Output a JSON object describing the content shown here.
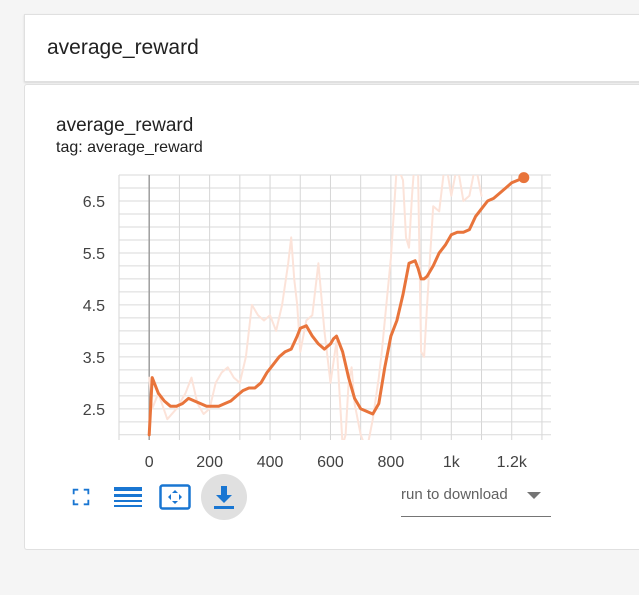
{
  "section": {
    "title": "average_reward"
  },
  "card": {
    "title": "average_reward",
    "tag": "tag: average_reward"
  },
  "toolbar": {
    "fullscreen_icon": "fullscreen-icon",
    "data_icon": "lines-icon",
    "fit_icon": "fit-domain-icon",
    "download_icon": "download-icon",
    "download_label": "run to download",
    "accent_color": "#1976d2"
  },
  "chart_data": {
    "type": "line",
    "title": "",
    "xlabel": "",
    "ylabel": "",
    "xlim": [
      -100,
      1330
    ],
    "ylim": [
      1.9,
      7.0
    ],
    "x_ticks": [
      0,
      200,
      400,
      600,
      800,
      1000,
      1200
    ],
    "x_tick_labels": [
      "0",
      "200",
      "400",
      "600",
      "800",
      "1k",
      "1.2k"
    ],
    "y_ticks": [
      2.5,
      3.5,
      4.5,
      5.5,
      6.5
    ],
    "y_tick_labels": [
      "2.5",
      "3.5",
      "4.5",
      "5.5",
      "6.5"
    ],
    "grid": true,
    "series": [
      {
        "role": "raw",
        "color": "#fce3d9",
        "x": [
          0,
          10,
          30,
          60,
          90,
          100,
          120,
          140,
          160,
          180,
          200,
          220,
          240,
          260,
          280,
          300,
          320,
          340,
          360,
          380,
          400,
          420,
          440,
          460,
          470,
          480,
          490,
          500,
          520,
          540,
          560,
          580,
          600,
          620,
          640,
          650,
          660,
          670,
          680,
          700,
          720,
          740,
          760,
          770,
          780,
          800,
          820,
          840,
          850,
          860,
          870,
          880,
          890,
          900,
          910,
          920,
          940,
          960,
          980,
          1000,
          1020,
          1040,
          1060,
          1080,
          1100
        ],
        "y": [
          3.1,
          2.5,
          2.8,
          2.3,
          2.5,
          2.6,
          2.8,
          3.1,
          2.6,
          2.4,
          2.5,
          3.0,
          3.2,
          3.3,
          3.1,
          3.0,
          3.5,
          4.5,
          4.3,
          4.2,
          4.3,
          4.0,
          4.5,
          5.3,
          5.8,
          5.0,
          4.5,
          3.6,
          4.2,
          4.3,
          5.3,
          4.0,
          3.0,
          3.8,
          1.8,
          2.0,
          3.0,
          3.3,
          2.6,
          2.0,
          1.7,
          2.3,
          3.1,
          3.6,
          4.2,
          5.4,
          7.2,
          6.9,
          5.8,
          5.6,
          6.6,
          7.4,
          7.0,
          3.6,
          3.5,
          4.5,
          6.4,
          6.3,
          7.3,
          6.6,
          7.2,
          6.5,
          6.6,
          7.2,
          6.6
        ]
      },
      {
        "role": "smoothed",
        "color": "#e8743b",
        "x": [
          0,
          10,
          30,
          50,
          70,
          90,
          110,
          130,
          150,
          170,
          190,
          210,
          230,
          250,
          270,
          290,
          310,
          330,
          350,
          370,
          390,
          410,
          430,
          450,
          470,
          490,
          500,
          520,
          540,
          560,
          580,
          600,
          610,
          620,
          640,
          660,
          680,
          700,
          720,
          740,
          760,
          780,
          800,
          820,
          840,
          860,
          880,
          890,
          900,
          910,
          920,
          940,
          960,
          980,
          1000,
          1020,
          1040,
          1060,
          1080,
          1100,
          1120,
          1140,
          1160,
          1180,
          1200,
          1220,
          1240
        ],
        "y": [
          2.0,
          3.1,
          2.8,
          2.65,
          2.55,
          2.55,
          2.6,
          2.7,
          2.65,
          2.6,
          2.55,
          2.55,
          2.55,
          2.6,
          2.65,
          2.75,
          2.85,
          2.9,
          2.9,
          3.0,
          3.2,
          3.35,
          3.5,
          3.6,
          3.65,
          3.9,
          4.05,
          4.1,
          3.9,
          3.75,
          3.65,
          3.75,
          3.85,
          3.9,
          3.6,
          3.1,
          2.7,
          2.5,
          2.45,
          2.4,
          2.6,
          3.3,
          3.9,
          4.2,
          4.7,
          5.3,
          5.35,
          5.2,
          5.0,
          5.0,
          5.05,
          5.25,
          5.5,
          5.65,
          5.85,
          5.9,
          5.9,
          5.95,
          6.2,
          6.35,
          6.5,
          6.55,
          6.65,
          6.75,
          6.85,
          6.9,
          6.95
        ]
      }
    ]
  }
}
